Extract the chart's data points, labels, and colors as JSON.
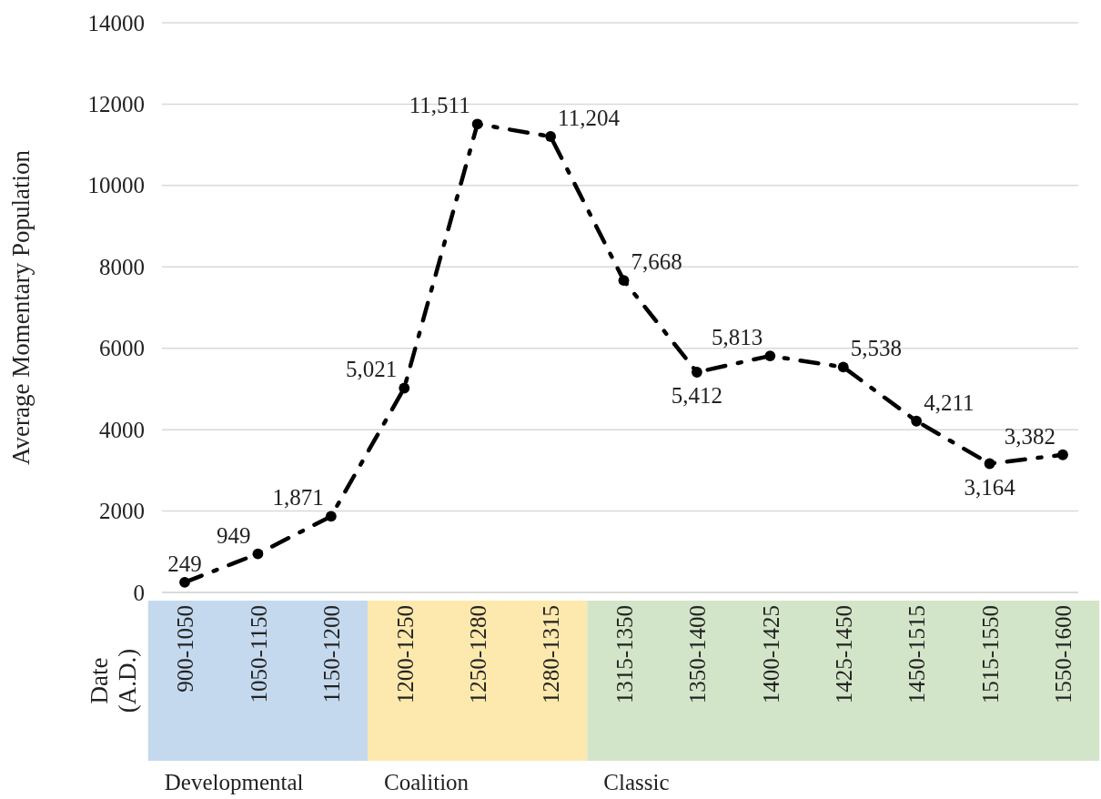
{
  "chart_data": {
    "type": "line",
    "ylabel": "Average Momentary Population",
    "categories": [
      "900-1050",
      "1050-1150",
      "1150-1200",
      "1200-1250",
      "1250-1280",
      "1280-1315",
      "1315-1350",
      "1350-1400",
      "1400-1425",
      "1425-1450",
      "1450-1515",
      "1515-1550",
      "1550-1600"
    ],
    "series": [
      {
        "color": "#000000",
        "values": [
          249,
          949,
          1871,
          5021,
          11511,
          11204,
          7668,
          5412,
          5813,
          5538,
          4211,
          3164,
          3382
        ],
        "value_labels": [
          "249",
          "949",
          "1,871",
          "5,021",
          "11,511",
          "11,204",
          "7,668",
          "5,412",
          "5,813",
          "5,538",
          "4,211",
          "3,164",
          "3,382"
        ]
      }
    ],
    "ylim": [
      0,
      14000
    ],
    "yticks": [
      0,
      2000,
      4000,
      6000,
      8000,
      10000,
      12000,
      14000
    ],
    "grid": "y",
    "marker": "circle",
    "line_style": "dashed",
    "annotations": [
      "Date (A.D.)",
      "Developmental",
      "Coalition",
      "Classic"
    ]
  }
}
